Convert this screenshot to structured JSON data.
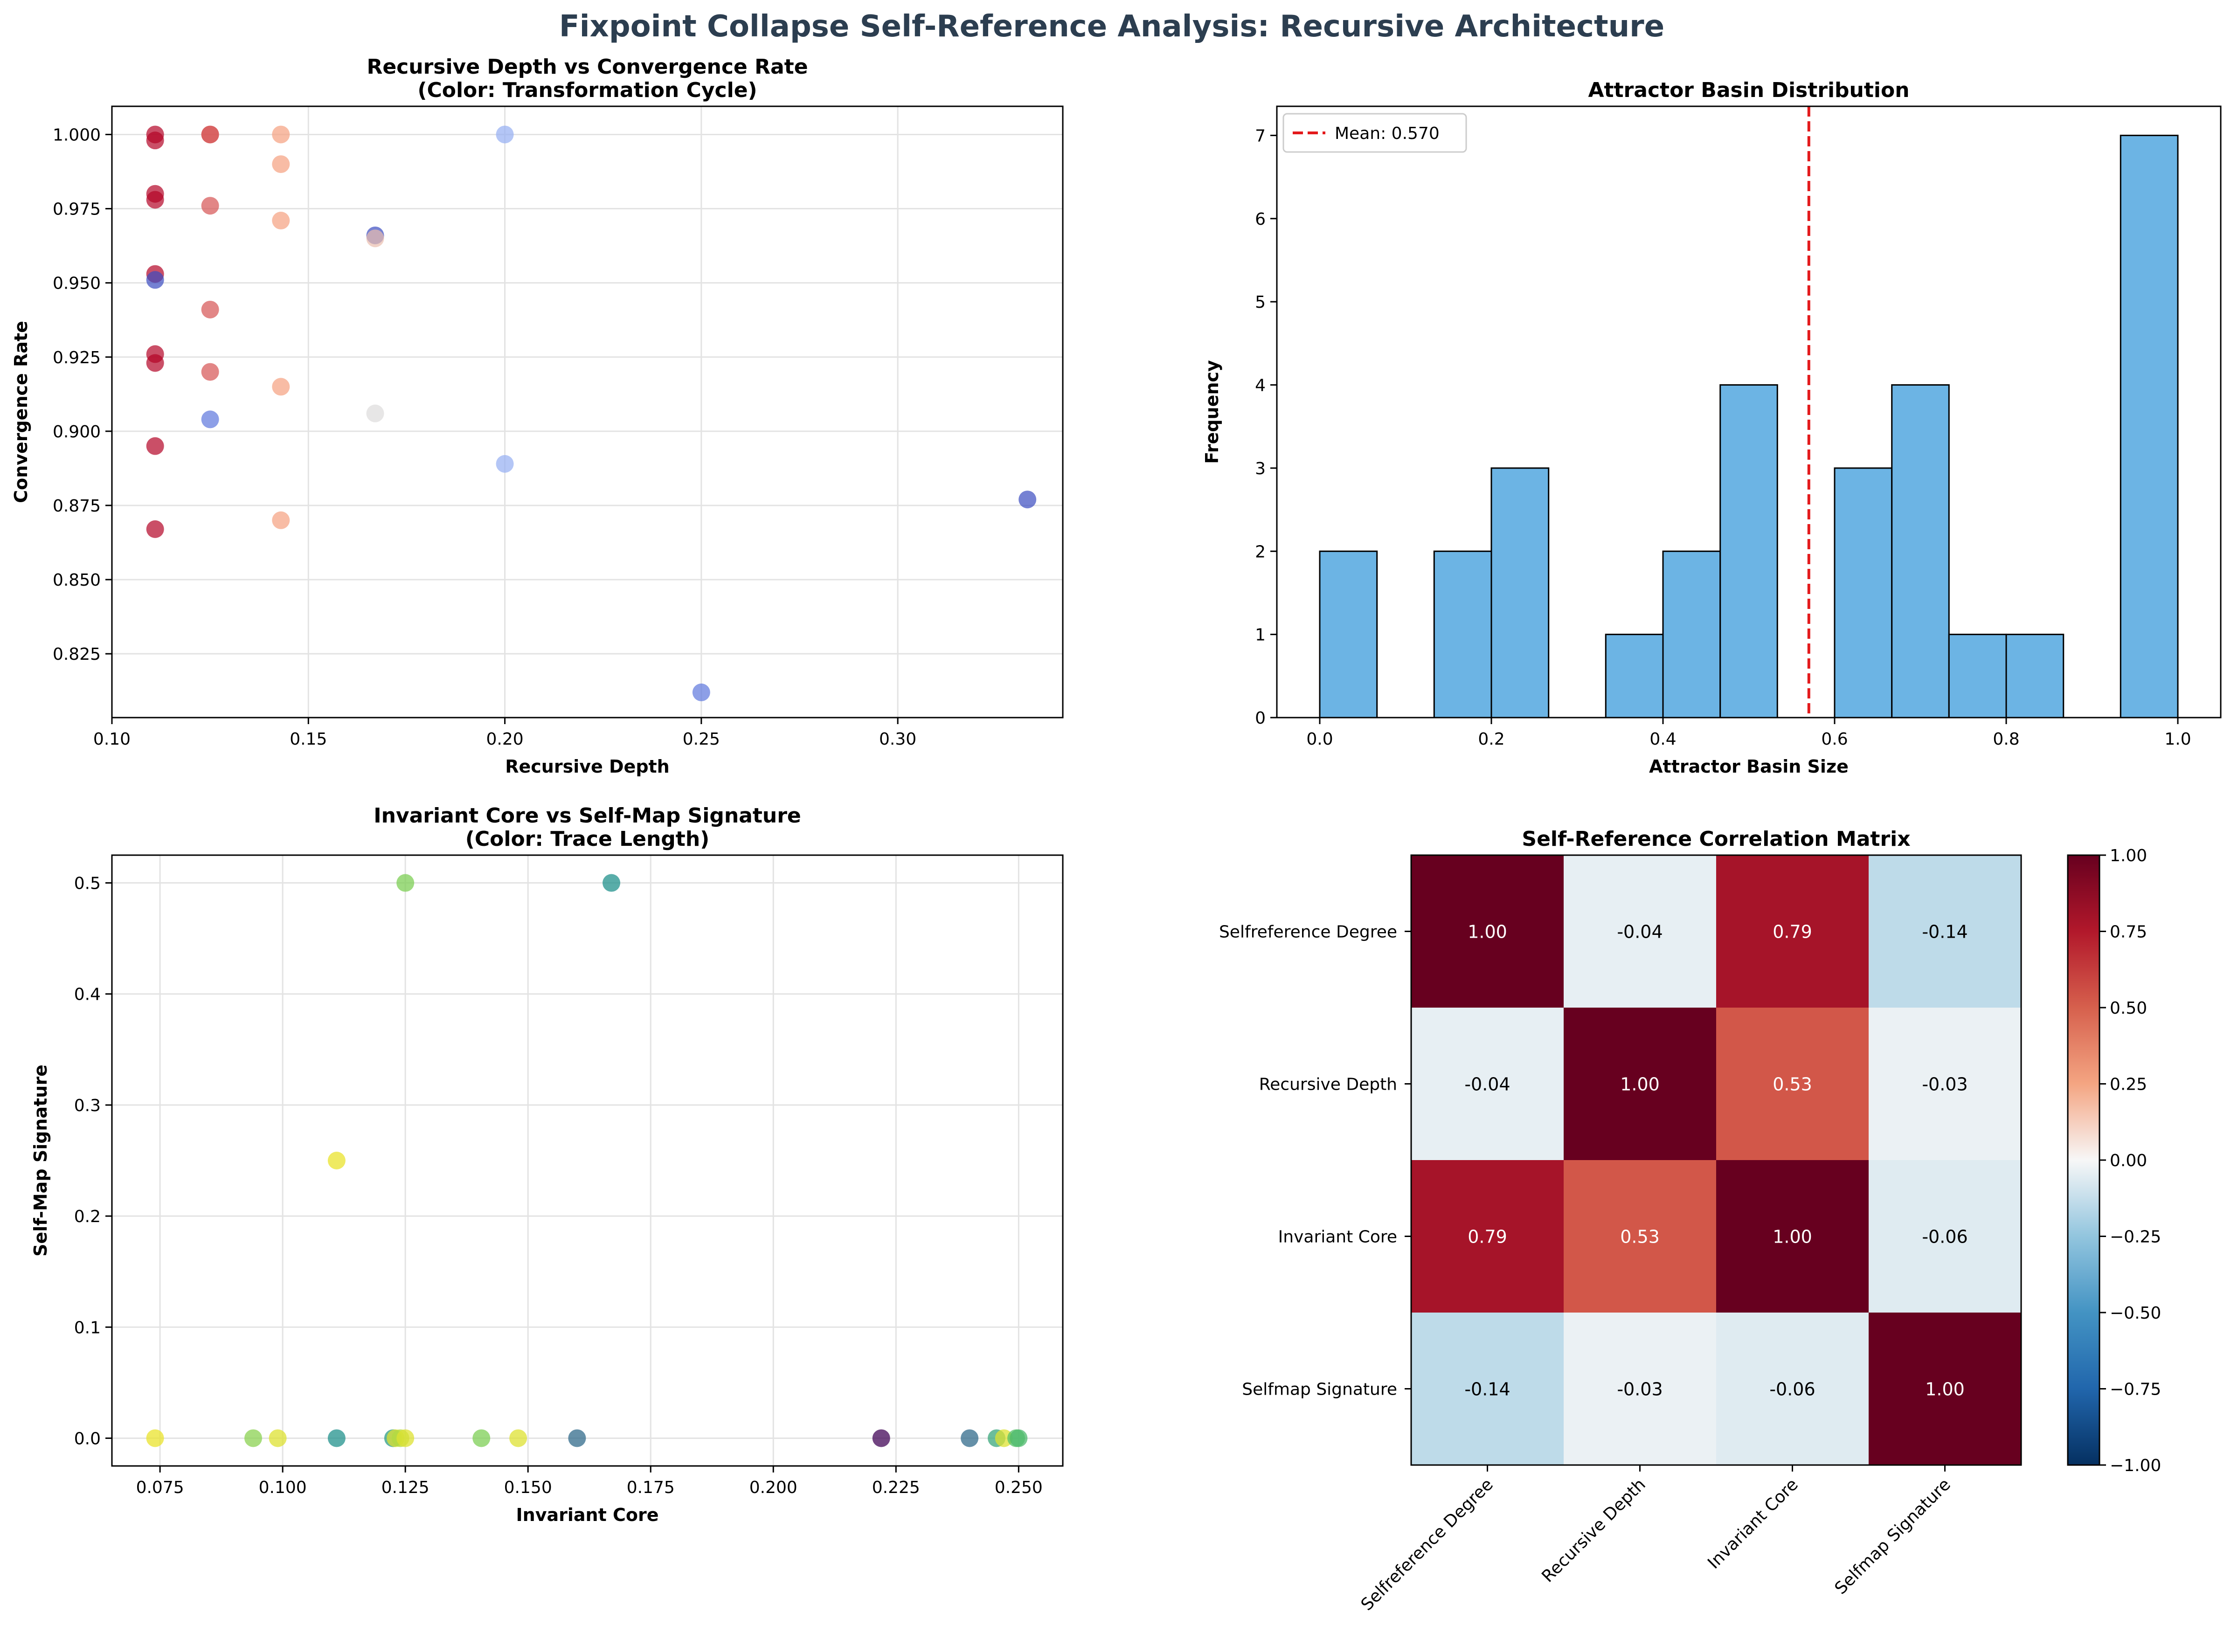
{
  "figure": {
    "title": "Fixpoint Collapse Self-Reference Analysis: Recursive Architecture",
    "title_color": "#2c3e50"
  },
  "chart_data": [
    {
      "type": "scatter",
      "title": "Recursive Depth vs Convergence Rate\n(Color: Transformation Cycle)",
      "xlabel": "Recursive Depth",
      "ylabel": "Convergence Rate",
      "xlim": [
        0.1,
        0.342
      ],
      "ylim": [
        0.8035,
        1.0095
      ],
      "xticks": [
        0.1,
        0.15,
        0.2,
        0.25,
        0.3
      ],
      "xtick_labels": [
        "0.10",
        "0.15",
        "0.20",
        "0.25",
        "0.30"
      ],
      "yticks": [
        0.825,
        0.85,
        0.875,
        0.9,
        0.925,
        0.95,
        0.975,
        1.0
      ],
      "ytick_labels": [
        "0.825",
        "0.850",
        "0.875",
        "0.900",
        "0.925",
        "0.950",
        "0.975",
        "1.000"
      ],
      "grid": true,
      "colormap": "coolwarm",
      "points": [
        {
          "x": 0.111,
          "y": 1.0,
          "c": 9
        },
        {
          "x": 0.111,
          "y": 0.998,
          "c": 9
        },
        {
          "x": 0.111,
          "y": 0.98,
          "c": 9
        },
        {
          "x": 0.111,
          "y": 0.978,
          "c": 9
        },
        {
          "x": 0.111,
          "y": 0.953,
          "c": 9
        },
        {
          "x": 0.111,
          "y": 0.926,
          "c": 9
        },
        {
          "x": 0.111,
          "y": 0.923,
          "c": 9
        },
        {
          "x": 0.111,
          "y": 0.895,
          "c": 9
        },
        {
          "x": 0.111,
          "y": 0.867,
          "c": 9
        },
        {
          "x": 0.111,
          "y": 0.951,
          "c": 1
        },
        {
          "x": 0.125,
          "y": 1.0,
          "c": 8
        },
        {
          "x": 0.125,
          "y": 1.0,
          "c": 8
        },
        {
          "x": 0.125,
          "y": 0.976,
          "c": 8
        },
        {
          "x": 0.125,
          "y": 0.941,
          "c": 8
        },
        {
          "x": 0.125,
          "y": 0.92,
          "c": 8
        },
        {
          "x": 0.125,
          "y": 0.904,
          "c": 2
        },
        {
          "x": 0.143,
          "y": 1.0,
          "c": 7
        },
        {
          "x": 0.143,
          "y": 0.99,
          "c": 7
        },
        {
          "x": 0.143,
          "y": 0.971,
          "c": 7
        },
        {
          "x": 0.143,
          "y": 0.915,
          "c": 7
        },
        {
          "x": 0.143,
          "y": 0.87,
          "c": 7
        },
        {
          "x": 0.167,
          "y": 0.966,
          "c": 1
        },
        {
          "x": 0.167,
          "y": 0.965,
          "c": 6
        },
        {
          "x": 0.167,
          "y": 0.906,
          "c": 5
        },
        {
          "x": 0.2,
          "y": 1.0,
          "c": 3.5
        },
        {
          "x": 0.2,
          "y": 0.889,
          "c": 3.5
        },
        {
          "x": 0.25,
          "y": 0.812,
          "c": 2
        },
        {
          "x": 0.333,
          "y": 0.877,
          "c": 1
        }
      ]
    },
    {
      "type": "bar",
      "title": "Attractor Basin Distribution",
      "xlabel": "Attractor Basin Size",
      "ylabel": "Frequency",
      "xlim": [
        -0.05,
        1.05
      ],
      "ylim": [
        0,
        7.35
      ],
      "xticks": [
        0.0,
        0.2,
        0.4,
        0.6,
        0.8,
        1.0
      ],
      "xtick_labels": [
        "0.0",
        "0.2",
        "0.4",
        "0.6",
        "0.8",
        "1.0"
      ],
      "yticks": [
        0,
        1,
        2,
        3,
        4,
        5,
        6,
        7
      ],
      "ytick_labels": [
        "0",
        "1",
        "2",
        "3",
        "4",
        "5",
        "6",
        "7"
      ],
      "bin_edges": [
        0.0,
        0.0667,
        0.1333,
        0.2,
        0.2667,
        0.3333,
        0.4,
        0.4667,
        0.5333,
        0.6,
        0.6667,
        0.7333,
        0.8,
        0.8667,
        0.9333,
        1.0
      ],
      "counts": [
        2,
        0,
        2,
        3,
        0,
        1,
        2,
        4,
        0,
        3,
        4,
        1,
        1,
        0,
        7
      ],
      "bar_color": "#6cb4e4",
      "mean_line": {
        "value": 0.57,
        "label": "Mean: 0.570",
        "color": "#e31a1c"
      },
      "legend_position": "upper left"
    },
    {
      "type": "scatter",
      "title": "Invariant Core vs Self-Map Signature\n(Color: Trace Length)",
      "xlabel": "Invariant Core",
      "ylabel": "Self-Map Signature",
      "xlim": [
        0.0652,
        0.259
      ],
      "ylim": [
        -0.025,
        0.525
      ],
      "xticks": [
        0.075,
        0.1,
        0.125,
        0.15,
        0.175,
        0.2,
        0.225,
        0.25
      ],
      "xtick_labels": [
        "0.075",
        "0.100",
        "0.125",
        "0.150",
        "0.175",
        "0.200",
        "0.225",
        "0.250"
      ],
      "yticks": [
        0.0,
        0.1,
        0.2,
        0.3,
        0.4,
        0.5
      ],
      "ytick_labels": [
        "0.0",
        "0.1",
        "0.2",
        "0.3",
        "0.4",
        "0.5"
      ],
      "grid": true,
      "colormap": "viridis",
      "points": [
        {
          "x": 0.125,
          "y": 0.5,
          "c": 0.8
        },
        {
          "x": 0.167,
          "y": 0.5,
          "c": 0.5
        },
        {
          "x": 0.111,
          "y": 0.25,
          "c": 0.97
        },
        {
          "x": 0.074,
          "y": 0.0,
          "c": 0.97
        },
        {
          "x": 0.094,
          "y": 0.0,
          "c": 0.82
        },
        {
          "x": 0.099,
          "y": 0.0,
          "c": 0.95
        },
        {
          "x": 0.111,
          "y": 0.0,
          "c": 0.5
        },
        {
          "x": 0.1225,
          "y": 0.0,
          "c": 0.55
        },
        {
          "x": 0.123,
          "y": 0.0,
          "c": 0.95
        },
        {
          "x": 0.124,
          "y": 0.0,
          "c": 0.88
        },
        {
          "x": 0.125,
          "y": 0.0,
          "c": 0.95
        },
        {
          "x": 0.1405,
          "y": 0.0,
          "c": 0.8
        },
        {
          "x": 0.148,
          "y": 0.0,
          "c": 0.95
        },
        {
          "x": 0.16,
          "y": 0.0,
          "c": 0.35
        },
        {
          "x": 0.222,
          "y": 0.0,
          "c": 0.02
        },
        {
          "x": 0.24,
          "y": 0.0,
          "c": 0.35
        },
        {
          "x": 0.2455,
          "y": 0.0,
          "c": 0.6
        },
        {
          "x": 0.247,
          "y": 0.0,
          "c": 0.95
        },
        {
          "x": 0.2495,
          "y": 0.0,
          "c": 0.72
        },
        {
          "x": 0.25,
          "y": 0.0,
          "c": 0.68
        }
      ]
    },
    {
      "type": "heatmap",
      "title": "Self-Reference Correlation Matrix",
      "labels": [
        "Selfreference Degree",
        "Recursive Depth",
        "Invariant Core",
        "Selfmap Signature"
      ],
      "matrix": [
        [
          1.0,
          -0.04,
          0.79,
          -0.14
        ],
        [
          -0.04,
          1.0,
          0.53,
          -0.03
        ],
        [
          0.79,
          0.53,
          1.0,
          -0.06
        ],
        [
          -0.14,
          -0.03,
          -0.06,
          1.0
        ]
      ],
      "colormap": "RdBu_r",
      "vmin": -1.0,
      "vmax": 1.0,
      "colorbar_ticks": [
        1.0,
        0.75,
        0.5,
        0.25,
        0.0,
        -0.25,
        -0.5,
        -0.75,
        -1.0
      ],
      "colorbar_tick_labels": [
        "1.00",
        "0.75",
        "0.50",
        "0.25",
        "0.00",
        "−0.25",
        "−0.50",
        "−0.75",
        "−1.00"
      ]
    }
  ]
}
